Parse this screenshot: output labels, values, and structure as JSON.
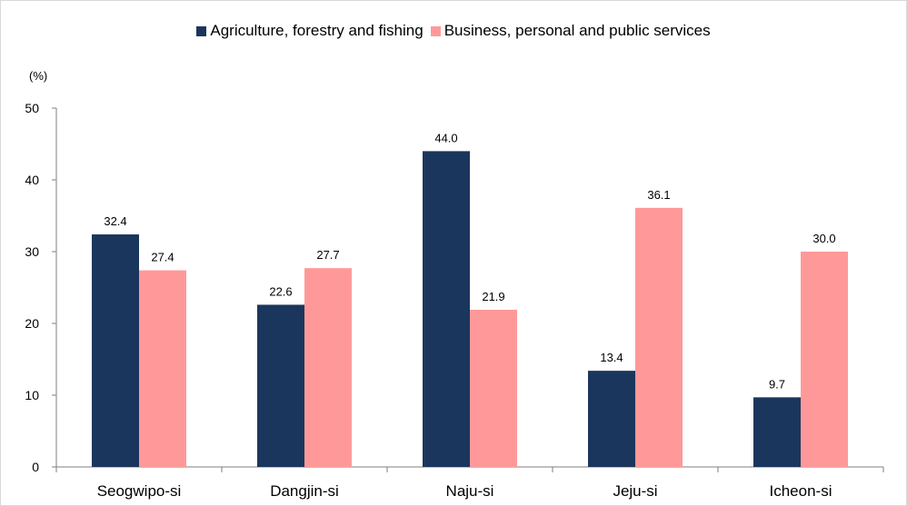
{
  "chart_data": {
    "type": "bar",
    "title": "",
    "xlabel": "",
    "ylabel": "(%)",
    "ylim": [
      0,
      50
    ],
    "yticks": [
      0,
      10,
      20,
      30,
      40,
      50
    ],
    "grid": false,
    "legend_position": "top-center",
    "categories": [
      "Seogwipo-si",
      "Dangjin-si",
      "Naju-si",
      "Jeju-si",
      "Icheon-si"
    ],
    "series": [
      {
        "name": "Agriculture, forestry and fishing",
        "color": "#1b365d",
        "values": [
          32.4,
          22.6,
          44.0,
          13.4,
          9.7
        ]
      },
      {
        "name": "Business, personal and public services",
        "color": "#ff9999",
        "values": [
          27.4,
          27.7,
          21.9,
          36.1,
          30.0
        ]
      }
    ]
  }
}
